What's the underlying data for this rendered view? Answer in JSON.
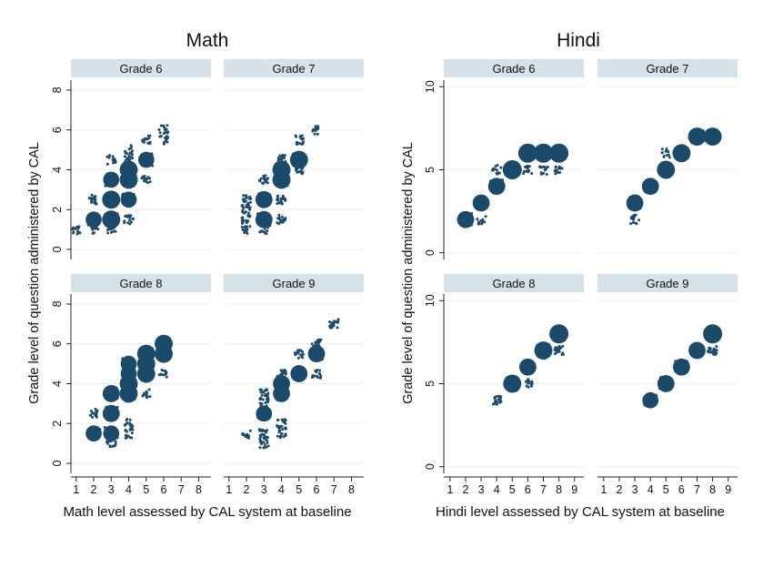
{
  "colors": {
    "marker": "#1b4a6b",
    "strip": "#d6e2ea",
    "axis": "#222222"
  },
  "shared_ylabel": "Grade level of question administered by CAL",
  "chart_data": [
    {
      "type": "scatter",
      "title": "Math",
      "xlabel": "Math level assessed by CAL system at baseline",
      "ylabel": "Grade level of question administered by CAL",
      "xticks": [
        1,
        2,
        3,
        4,
        5,
        6,
        7,
        8
      ],
      "xlim": [
        0.7,
        8.7
      ],
      "yticks": [
        0,
        2,
        4,
        6,
        8
      ],
      "ylim": [
        -0.5,
        8.5
      ],
      "grid": true,
      "note": "jittered scatter; clusters list [x, y, relative_count]",
      "panels": [
        {
          "name": "Grade 6",
          "clusters": [
            [
              1,
              1,
              0.5
            ],
            [
              2,
              1,
              0.5
            ],
            [
              2,
              1.5,
              0.7
            ],
            [
              2,
              2.5,
              0.5
            ],
            [
              3,
              1,
              0.3
            ],
            [
              3,
              1.5,
              0.9
            ],
            [
              3,
              2.5,
              0.9
            ],
            [
              3,
              3.5,
              0.7
            ],
            [
              3,
              4.5,
              0.3
            ],
            [
              4,
              1.5,
              0.4
            ],
            [
              4,
              2.5,
              0.7
            ],
            [
              4,
              3.5,
              0.9
            ],
            [
              4,
              4,
              0.9
            ],
            [
              4,
              4.5,
              0.4
            ],
            [
              4,
              5,
              0.3
            ],
            [
              5,
              3.5,
              0.3
            ],
            [
              5,
              4.5,
              0.7
            ],
            [
              5,
              5.5,
              0.4
            ],
            [
              6,
              5.5,
              0.3
            ],
            [
              6,
              6,
              0.3
            ]
          ]
        },
        {
          "name": "Grade 7",
          "clusters": [
            [
              2,
              1,
              0.4
            ],
            [
              2,
              1.5,
              0.5
            ],
            [
              2,
              2,
              0.5
            ],
            [
              2,
              2.5,
              0.6
            ],
            [
              3,
              1,
              0.3
            ],
            [
              3,
              1.5,
              0.8
            ],
            [
              3,
              2.5,
              0.8
            ],
            [
              3,
              3.5,
              0.6
            ],
            [
              4,
              1.5,
              0.4
            ],
            [
              4,
              2.5,
              0.6
            ],
            [
              4,
              3.5,
              0.9
            ],
            [
              4,
              4,
              0.9
            ],
            [
              4,
              4.5,
              0.6
            ],
            [
              5,
              4,
              0.5
            ],
            [
              5,
              4.5,
              0.9
            ],
            [
              5,
              5.5,
              0.5
            ],
            [
              6,
              6,
              0.2
            ]
          ]
        },
        {
          "name": "Grade 8",
          "clusters": [
            [
              2,
              1.5,
              0.7
            ],
            [
              2,
              2.5,
              0.4
            ],
            [
              3,
              1,
              0.4
            ],
            [
              3,
              1.5,
              0.7
            ],
            [
              3,
              2.5,
              0.8
            ],
            [
              3,
              3.5,
              0.8
            ],
            [
              4,
              1.5,
              0.4
            ],
            [
              4,
              2,
              0.3
            ],
            [
              4,
              3.5,
              0.9
            ],
            [
              4,
              4,
              0.9
            ],
            [
              4,
              4.5,
              0.7
            ],
            [
              4,
              5,
              0.7
            ],
            [
              5,
              3.5,
              0.2
            ],
            [
              5,
              4.5,
              0.9
            ],
            [
              5,
              5,
              0.9
            ],
            [
              5,
              5.5,
              0.9
            ],
            [
              6,
              4.5,
              0.3
            ],
            [
              6,
              5.5,
              0.9
            ],
            [
              6,
              6,
              0.9
            ]
          ]
        },
        {
          "name": "Grade 9",
          "clusters": [
            [
              2,
              1.5,
              0.3
            ],
            [
              3,
              1,
              0.4
            ],
            [
              3,
              1.5,
              0.6
            ],
            [
              3,
              2.5,
              0.7
            ],
            [
              3,
              3,
              0.4
            ],
            [
              3,
              3.5,
              0.6
            ],
            [
              4,
              1.5,
              0.4
            ],
            [
              4,
              2,
              0.5
            ],
            [
              4,
              3.5,
              0.8
            ],
            [
              4,
              4,
              0.8
            ],
            [
              4,
              4.5,
              0.5
            ],
            [
              5,
              4.5,
              0.8
            ],
            [
              5,
              5.5,
              0.4
            ],
            [
              6,
              4.5,
              0.4
            ],
            [
              6,
              5.5,
              0.8
            ],
            [
              6,
              6,
              0.6
            ],
            [
              7,
              7,
              0.5
            ]
          ]
        }
      ]
    },
    {
      "type": "scatter",
      "title": "Hindi",
      "xlabel": "Hindi level assessed by CAL system at baseline",
      "ylabel": "Grade level of question administered by CAL",
      "xticks": [
        1,
        2,
        3,
        4,
        5,
        6,
        7,
        8,
        9
      ],
      "xlim": [
        0.6,
        9.6
      ],
      "yticks": [
        0,
        5,
        10
      ],
      "ylim": [
        -0.4,
        10.4
      ],
      "grid": true,
      "note": "jittered scatter; clusters list [x, y, relative_count]",
      "panels": [
        {
          "name": "Grade 6",
          "clusters": [
            [
              2,
              2,
              0.8
            ],
            [
              3,
              2,
              0.3
            ],
            [
              3,
              3,
              0.8
            ],
            [
              4,
              4,
              0.8
            ],
            [
              4,
              5,
              0.3
            ],
            [
              5,
              5,
              1
            ],
            [
              6,
              6,
              1
            ],
            [
              6,
              5,
              0.3
            ],
            [
              7,
              6,
              1
            ],
            [
              7,
              5,
              0.3
            ],
            [
              8,
              6,
              1
            ],
            [
              8,
              5,
              0.3
            ]
          ]
        },
        {
          "name": "Grade 7",
          "clusters": [
            [
              3,
              2,
              0.4
            ],
            [
              3,
              3,
              0.8
            ],
            [
              4,
              4,
              0.8
            ],
            [
              5,
              5,
              0.9
            ],
            [
              5,
              6,
              0.2
            ],
            [
              6,
              6,
              0.9
            ],
            [
              7,
              7,
              0.9
            ],
            [
              8,
              7,
              0.9
            ]
          ]
        },
        {
          "name": "Grade 8",
          "clusters": [
            [
              4,
              4,
              0.6
            ],
            [
              5,
              5,
              0.9
            ],
            [
              6,
              5,
              0.3
            ],
            [
              6,
              6,
              0.8
            ],
            [
              7,
              7,
              0.9
            ],
            [
              8,
              7,
              0.6
            ],
            [
              8,
              8,
              1
            ]
          ]
        },
        {
          "name": "Grade 9",
          "clusters": [
            [
              4,
              4,
              0.7
            ],
            [
              5,
              5,
              0.8
            ],
            [
              6,
              6,
              0.8
            ],
            [
              7,
              7,
              0.8
            ],
            [
              8,
              7,
              0.6
            ],
            [
              8,
              8,
              1
            ]
          ]
        }
      ]
    }
  ]
}
